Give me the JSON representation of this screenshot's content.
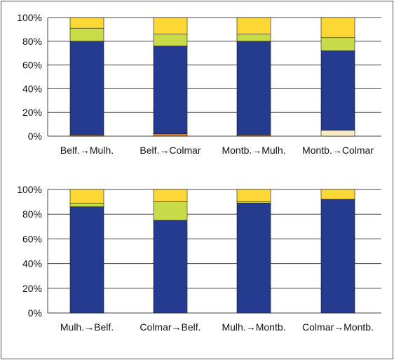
{
  "chart_data": [
    {
      "type": "bar",
      "stacked": true,
      "normalized": true,
      "title": "",
      "xlabel": "",
      "ylabel": "",
      "ylim": [
        0,
        100
      ],
      "yticks": [
        "0%",
        "20%",
        "40%",
        "60%",
        "80%",
        "100%"
      ],
      "grid": true,
      "legend": "none",
      "categories": [
        "Belf.→Mulh.",
        "Belf.→Colmar",
        "Montb.→Mulh.",
        "Montb.→Colmar"
      ],
      "series": [
        {
          "color": "#e87722",
          "values": [
            1,
            2,
            1,
            0
          ]
        },
        {
          "color": "#f7ecc4",
          "values": [
            0,
            0,
            0,
            5
          ]
        },
        {
          "color": "#243b8f",
          "values": [
            79,
            74,
            79,
            67
          ]
        },
        {
          "color": "#c8dc4a",
          "values": [
            11,
            10,
            6,
            11
          ]
        },
        {
          "color": "#fdd835",
          "values": [
            9,
            14,
            14,
            17
          ]
        }
      ]
    },
    {
      "type": "bar",
      "stacked": true,
      "normalized": true,
      "title": "",
      "xlabel": "",
      "ylabel": "",
      "ylim": [
        0,
        100
      ],
      "yticks": [
        "0%",
        "20%",
        "40%",
        "60%",
        "80%",
        "100%"
      ],
      "grid": true,
      "legend": "none",
      "categories": [
        "Mulh.→Belf.",
        "Colmar→Belf.",
        "Mulh.→Montb.",
        "Colmar→Montb."
      ],
      "series": [
        {
          "color": "#e87722",
          "values": [
            0,
            0,
            0,
            0
          ]
        },
        {
          "color": "#f7ecc4",
          "values": [
            0,
            0,
            0,
            0
          ]
        },
        {
          "color": "#243b8f",
          "values": [
            86,
            75,
            89,
            92
          ]
        },
        {
          "color": "#c8dc4a",
          "values": [
            3,
            15,
            1,
            0
          ]
        },
        {
          "color": "#fdd835",
          "values": [
            11,
            10,
            10,
            8
          ]
        }
      ]
    }
  ]
}
